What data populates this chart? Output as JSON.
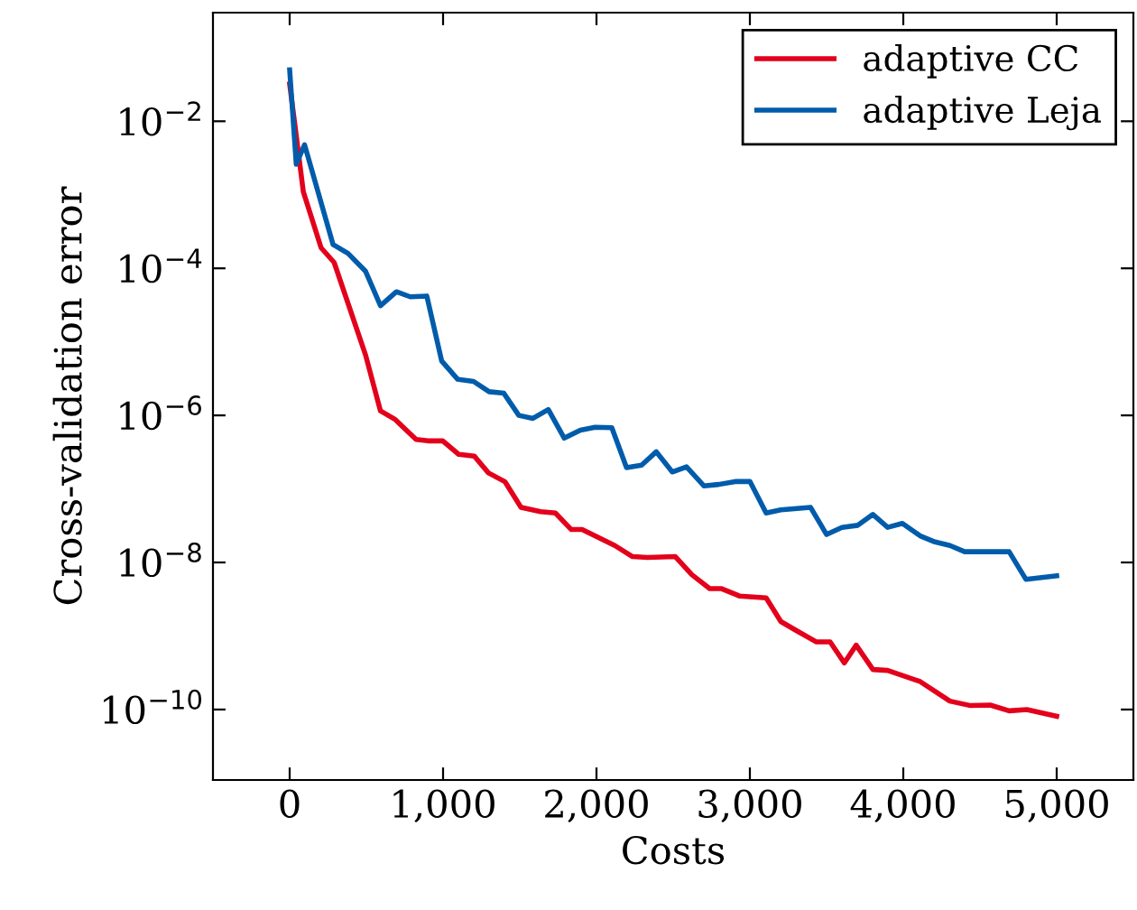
{
  "chart_data": {
    "type": "line",
    "xlabel": "Costs",
    "ylabel": "Cross-validation error",
    "log": "y",
    "xlim": [
      -500,
      5500
    ],
    "xticks": [
      {
        "value": 0,
        "label": "0"
      },
      {
        "value": 1000,
        "label": "1,000"
      },
      {
        "value": 2000,
        "label": "2,000"
      },
      {
        "value": 3000,
        "label": "3,000"
      },
      {
        "value": 4000,
        "label": "4,000"
      },
      {
        "value": 5000,
        "label": "5,000"
      }
    ],
    "ylim": [
      1.1e-11,
      0.3
    ],
    "yticks": [
      {
        "value": 1e-10,
        "label": "10$^{−10}$"
      },
      {
        "value": 1e-08,
        "label": "10$^{−8}$"
      },
      {
        "value": 1e-06,
        "label": "10$^{−6}$"
      },
      {
        "value": 0.0001,
        "label": "10$^{−4}$"
      },
      {
        "value": 0.01,
        "label": "10$^{−2}$"
      }
    ],
    "grid": false,
    "legend": "top right",
    "marker": "none",
    "line_style": "solid",
    "series": [
      {
        "name": "adaptive CC",
        "color": "#e3001b",
        "x": [
          0,
          38,
          89,
          205,
          290,
          495,
          592,
          688,
          824,
          901,
          998,
          1102,
          1203,
          1296,
          1404,
          1508,
          1636,
          1732,
          1836,
          1906,
          2119,
          2235,
          2332,
          2514,
          2622,
          2738,
          2816,
          2932,
          3106,
          3202,
          3298,
          3434,
          3523,
          3616,
          3693,
          3802,
          3898,
          4110,
          4304,
          4439,
          4567,
          4690,
          4806,
          5000
        ],
        "values": [
          0.032,
          0.0077,
          0.0011,
          0.00019,
          0.00012,
          6.6e-06,
          1.15e-06,
          8.8e-07,
          4.7e-07,
          4.5e-07,
          4.5e-07,
          2.95e-07,
          2.8e-07,
          1.65e-07,
          1.25e-07,
          5.6e-08,
          4.9e-08,
          4.7e-08,
          2.8e-08,
          2.8e-08,
          1.7e-08,
          1.2e-08,
          1.17e-08,
          1.2e-08,
          6.8e-09,
          4.4e-09,
          4.4e-09,
          3.5e-09,
          3.3e-09,
          1.57e-09,
          1.2e-09,
          8.3e-10,
          8.3e-10,
          4.3e-10,
          7.5e-10,
          3.5e-10,
          3.4e-10,
          2.4e-10,
          1.3e-10,
          1.13e-10,
          1.15e-10,
          9.6e-11,
          1e-10,
          8.1e-11
        ]
      },
      {
        "name": "adaptive Leja",
        "color": "#005cab",
        "x": [
          0,
          43,
          97,
          283,
          380,
          495,
          592,
          696,
          786,
          894,
          991,
          1095,
          1199,
          1300,
          1396,
          1494,
          1586,
          1686,
          1790,
          1895,
          1992,
          2100,
          2196,
          2294,
          2390,
          2494,
          2587,
          2700,
          2796,
          2904,
          3001,
          3106,
          3202,
          3396,
          3500,
          3600,
          3704,
          3802,
          3898,
          3994,
          4110,
          4207,
          4304,
          4400,
          4516,
          4690,
          4799,
          5000
        ],
        "values": [
          0.05,
          0.0026,
          0.0048,
          0.00021,
          0.00016,
          9.1e-05,
          3.1e-05,
          4.8e-05,
          4.1e-05,
          4.2e-05,
          5.5e-06,
          3.1e-06,
          2.9e-06,
          2.1e-06,
          2e-06,
          1e-06,
          9.1e-07,
          1.2e-06,
          4.9e-07,
          6.3e-07,
          6.9e-07,
          6.8e-07,
          1.95e-07,
          2.1e-07,
          3.2e-07,
          1.7e-07,
          2e-07,
          1.1e-07,
          1.15e-07,
          1.26e-07,
          1.26e-07,
          4.7e-08,
          5.2e-08,
          5.6e-08,
          2.4e-08,
          3e-08,
          3.2e-08,
          4.5e-08,
          3e-08,
          3.4e-08,
          2.3e-08,
          1.9e-08,
          1.7e-08,
          1.4e-08,
          1.4e-08,
          1.4e-08,
          5.9e-09,
          6.6e-09
        ]
      }
    ]
  }
}
